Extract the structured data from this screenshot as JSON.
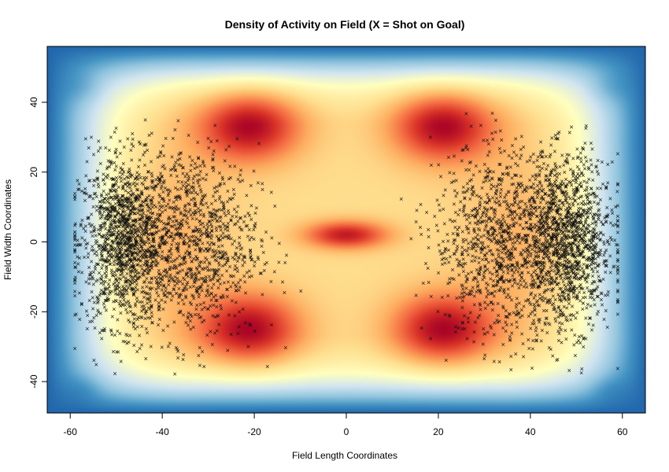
{
  "chart_data": {
    "type": "heatmap",
    "title": "Density of Activity on Field (X = Shot on Goal)",
    "xlabel": "Field Length Coordinates",
    "ylabel": "Field Width Coordinates",
    "xlim": [
      -65,
      65
    ],
    "ylim": [
      -49,
      56
    ],
    "x_ticks": [
      -60,
      -40,
      -20,
      0,
      20,
      40,
      60
    ],
    "y_ticks": [
      -40,
      -20,
      0,
      20,
      40
    ],
    "grid": false,
    "colormap": [
      "#2166ac",
      "#4393c3",
      "#92c5de",
      "#d1e5f0",
      "#ffffbf",
      "#fee090",
      "#fdae61",
      "#f46d43",
      "#d73027",
      "#a50026"
    ],
    "density_hotspots": [
      {
        "x": -21,
        "y": 33,
        "weight": 1.0
      },
      {
        "x": 21,
        "y": 33,
        "weight": 1.0
      },
      {
        "x": -21,
        "y": -25,
        "weight": 1.0
      },
      {
        "x": 21,
        "y": -25,
        "weight": 1.0
      },
      {
        "x": 0,
        "y": 2,
        "weight": 0.9
      }
    ],
    "shot_marker": "×",
    "shot_clusters": [
      {
        "center_x": -48,
        "center_y": 0,
        "spread_x": 5,
        "spread_y": 12,
        "count": 1400
      },
      {
        "center_x": -33,
        "center_y": 0,
        "spread_x": 7,
        "spread_y": 14,
        "count": 1000
      },
      {
        "center_x": 48,
        "center_y": 0,
        "spread_x": 5,
        "spread_y": 12,
        "count": 1400
      },
      {
        "center_x": 33,
        "center_y": 0,
        "spread_x": 7,
        "spread_y": 14,
        "count": 1000
      }
    ]
  }
}
